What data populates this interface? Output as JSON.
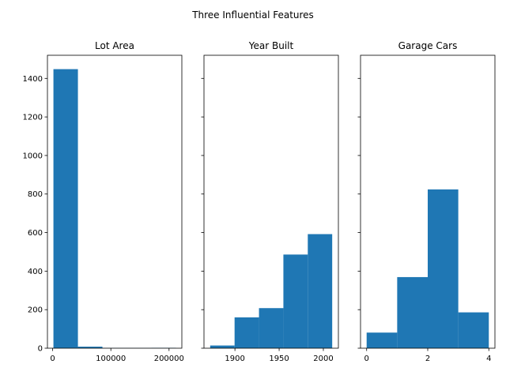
{
  "figure": {
    "suptitle": "Three Influential Features"
  },
  "chart_data": [
    {
      "type": "bar",
      "title": "Lot Area",
      "xlabel": "",
      "ylabel": "",
      "color": "#1f77b4",
      "bins": [
        [
          1300,
          43400
        ],
        [
          43400,
          85500
        ],
        [
          85500,
          127600
        ],
        [
          127600,
          169700
        ],
        [
          169700,
          211800
        ]
      ],
      "values": [
        1448,
        8,
        1,
        1,
        2
      ],
      "xlim": [
        -9000,
        222000
      ],
      "ylim": [
        0,
        1520
      ],
      "xticks": [
        0,
        100000,
        200000
      ],
      "xtick_labels": [
        "0",
        "100000",
        "200000"
      ],
      "yticks": [
        0,
        200,
        400,
        600,
        800,
        1000,
        1200,
        1400
      ],
      "ytick_labels": [
        "0",
        "200",
        "400",
        "600",
        "800",
        "1000",
        "1200",
        "1400"
      ]
    },
    {
      "type": "bar",
      "title": "Year Built",
      "xlabel": "",
      "ylabel": "",
      "color": "#1f77b4",
      "bins": [
        [
          1872,
          1899.6
        ],
        [
          1899.6,
          1927.2
        ],
        [
          1927.2,
          1954.8
        ],
        [
          1954.8,
          1982.4
        ],
        [
          1982.4,
          2010
        ]
      ],
      "values": [
        14,
        160,
        208,
        486,
        592
      ],
      "xlim": [
        1865,
        2017
      ],
      "ylim": [
        0,
        1520
      ],
      "xticks": [
        1900,
        1950,
        2000
      ],
      "xtick_labels": [
        "1900",
        "1950",
        "2000"
      ],
      "yticks": [
        0,
        200,
        400,
        600,
        800,
        1000,
        1200,
        1400
      ],
      "ytick_labels": [
        "",
        "",
        "",
        "",
        "",
        "",
        "",
        ""
      ]
    },
    {
      "type": "bar",
      "title": "Garage Cars",
      "xlabel": "",
      "ylabel": "",
      "color": "#1f77b4",
      "bins": [
        [
          0,
          1
        ],
        [
          1,
          2
        ],
        [
          2,
          3
        ],
        [
          3,
          4
        ]
      ],
      "values": [
        81,
        369,
        824,
        186
      ],
      "xlim": [
        -0.2,
        4.2
      ],
      "ylim": [
        0,
        1520
      ],
      "xticks": [
        0,
        2,
        4
      ],
      "xtick_labels": [
        "0",
        "2",
        "4"
      ],
      "yticks": [
        0,
        200,
        400,
        600,
        800,
        1000,
        1200,
        1400
      ],
      "ytick_labels": [
        "",
        "",
        "",
        "",
        "",
        "",
        "",
        ""
      ]
    }
  ]
}
